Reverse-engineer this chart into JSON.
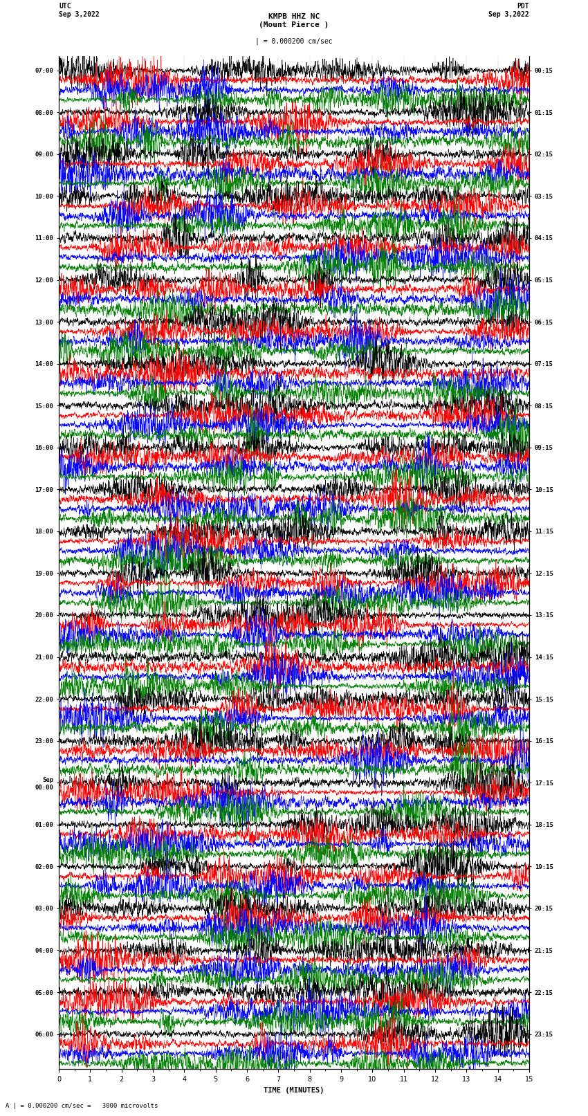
{
  "title_center": "KMPB HHZ NC\n(Mount Pierce )",
  "title_left": "UTC\nSep 3,2022",
  "title_right": "PDT\nSep 3,2022",
  "scale_text": "| = 0.000200 cm/sec",
  "bottom_scale_text": "A | = 0.000200 cm/sec =   3000 microvolts",
  "xlabel": "TIME (MINUTES)",
  "utc_labels": [
    "07:00",
    "08:00",
    "09:00",
    "10:00",
    "11:00",
    "12:00",
    "13:00",
    "14:00",
    "15:00",
    "16:00",
    "17:00",
    "18:00",
    "19:00",
    "20:00",
    "21:00",
    "22:00",
    "23:00",
    "Sep\n00:00",
    "01:00",
    "02:00",
    "03:00",
    "04:00",
    "05:00",
    "06:00"
  ],
  "pdt_labels": [
    "00:15",
    "01:15",
    "02:15",
    "03:15",
    "04:15",
    "05:15",
    "06:15",
    "07:15",
    "08:15",
    "09:15",
    "10:15",
    "11:15",
    "12:15",
    "13:15",
    "14:15",
    "15:15",
    "16:15",
    "17:15",
    "18:15",
    "19:15",
    "20:15",
    "21:15",
    "22:15",
    "23:15"
  ],
  "trace_colors": [
    "black",
    "red",
    "blue",
    "green"
  ],
  "n_rows": 24,
  "traces_per_row": 4,
  "time_minutes": 15,
  "bg_color": "white",
  "samples_per_minute": 200
}
